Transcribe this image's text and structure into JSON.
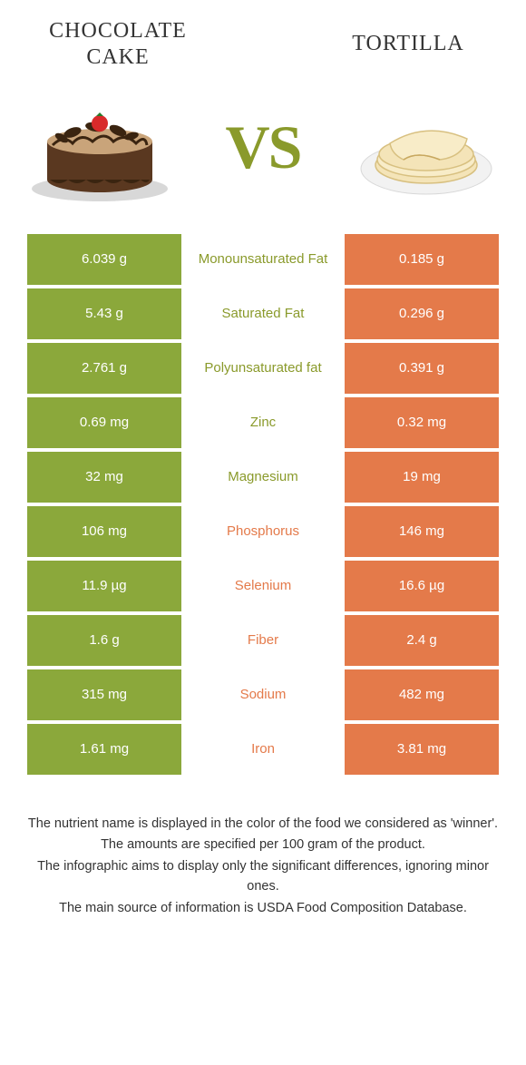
{
  "colors": {
    "left_bg": "#8ba83b",
    "right_bg": "#e47a4a",
    "left_text": "#8a9a2b",
    "right_text": "#e47a4a"
  },
  "header": {
    "left_title": "Chocolate cake",
    "right_title": "Tortilla",
    "vs": "VS"
  },
  "rows": [
    {
      "left": "6.039 g",
      "mid": "Monounsaturated Fat",
      "right": "0.185 g",
      "winner": "left"
    },
    {
      "left": "5.43 g",
      "mid": "Saturated Fat",
      "right": "0.296 g",
      "winner": "left"
    },
    {
      "left": "2.761 g",
      "mid": "Polyunsaturated fat",
      "right": "0.391 g",
      "winner": "left"
    },
    {
      "left": "0.69 mg",
      "mid": "Zinc",
      "right": "0.32 mg",
      "winner": "left"
    },
    {
      "left": "32 mg",
      "mid": "Magnesium",
      "right": "19 mg",
      "winner": "left"
    },
    {
      "left": "106 mg",
      "mid": "Phosphorus",
      "right": "146 mg",
      "winner": "right"
    },
    {
      "left": "11.9 µg",
      "mid": "Selenium",
      "right": "16.6 µg",
      "winner": "right"
    },
    {
      "left": "1.6 g",
      "mid": "Fiber",
      "right": "2.4 g",
      "winner": "right"
    },
    {
      "left": "315 mg",
      "mid": "Sodium",
      "right": "482 mg",
      "winner": "right"
    },
    {
      "left": "1.61 mg",
      "mid": "Iron",
      "right": "3.81 mg",
      "winner": "right"
    }
  ],
  "footer": [
    "The nutrient name is displayed in the color of the food we considered as 'winner'.",
    "The amounts are specified per 100 gram of the product.",
    "The infographic aims to display only the significant differences, ignoring minor ones.",
    "The main source of information is USDA Food Composition Database."
  ]
}
